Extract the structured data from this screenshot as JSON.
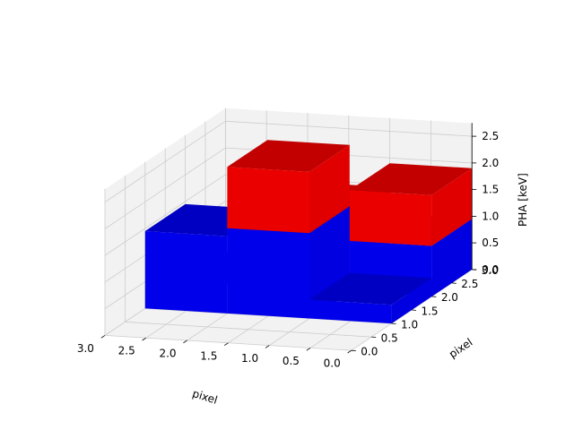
{
  "chart_data": {
    "type": "bar3d",
    "title": "",
    "xlabel": "pixel",
    "ylabel": "pixel",
    "zlabel": "PHA [keV]",
    "xlim": [
      0,
      3
    ],
    "ylim": [
      0,
      3
    ],
    "zlim": [
      0,
      2.75
    ],
    "x_ticks": [
      "0.0",
      "0.5",
      "1.0",
      "1.5",
      "2.0",
      "2.5",
      "3.0"
    ],
    "y_ticks": [
      "0.0",
      "0.5",
      "1.0",
      "1.5",
      "2.0",
      "2.5",
      "3.0"
    ],
    "z_ticks": [
      "0.0",
      "0.5",
      "1.0",
      "1.5",
      "2.0",
      "2.5"
    ],
    "grid": true,
    "colors": {
      "base": "#0000ff",
      "top": "#ff0000",
      "pane": "#f2f2f2",
      "grid": "#cccccc"
    },
    "bars": [
      {
        "x": 0.0,
        "y": 1.0,
        "base": 0.0,
        "height": 0.35,
        "color": "base"
      },
      {
        "x": 1.0,
        "y": 1.0,
        "base": 0.0,
        "height": 1.6,
        "color": "base"
      },
      {
        "x": 2.0,
        "y": 1.0,
        "base": 0.0,
        "height": 1.45,
        "color": "base"
      },
      {
        "x": 0.0,
        "y": 2.0,
        "base": 0.0,
        "height": 0.95,
        "color": "base"
      },
      {
        "x": 1.0,
        "y": 2.0,
        "base": 0.0,
        "height": 1.1,
        "color": "base"
      },
      {
        "x": 2.0,
        "y": 2.0,
        "base": 0.0,
        "height": 0.05,
        "color": "base"
      },
      {
        "x": 1.0,
        "y": 1.0,
        "base": 1.6,
        "height": 1.15,
        "color": "top"
      },
      {
        "x": 0.0,
        "y": 2.0,
        "base": 0.95,
        "height": 0.95,
        "color": "top"
      },
      {
        "x": 1.0,
        "y": 2.0,
        "base": 1.1,
        "height": 0.35,
        "color": "top"
      }
    ]
  }
}
